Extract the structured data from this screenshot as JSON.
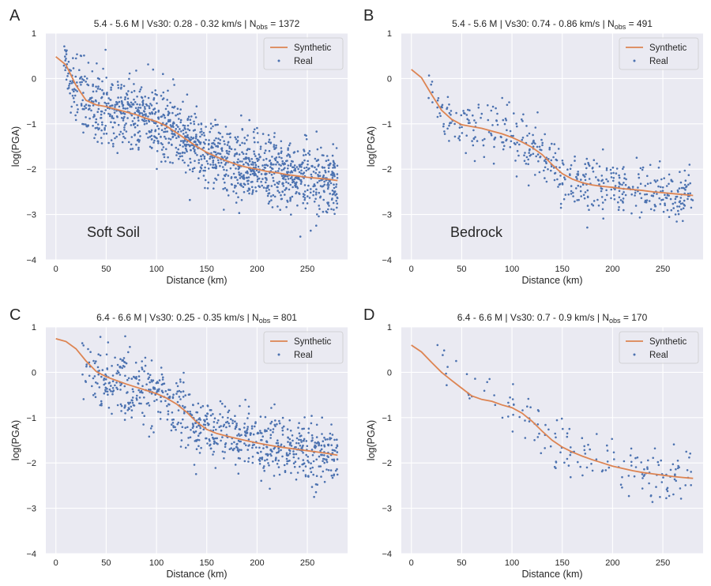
{
  "chart_data": [
    {
      "type": "scatter",
      "panel_label": "A",
      "title": "5.4 - 5.6 M | Vs30: 0.28 - 0.32 km/s | N",
      "title_sub": "obs",
      "title_tail": " = 1372",
      "n_obs": 1372,
      "xlabel": "Distance (km)",
      "ylabel": "log(PGA)",
      "xlim": [
        -10,
        290
      ],
      "ylim": [
        -4,
        1
      ],
      "xticks": [
        0,
        50,
        100,
        150,
        200,
        250
      ],
      "yticks": [
        -4,
        -3,
        -2,
        -1,
        0,
        1
      ],
      "annotation": "Soft Soil",
      "legend": [
        "Synthetic",
        "Real"
      ],
      "legend_position": "top-right",
      "synthetic": {
        "x": [
          0,
          10,
          20,
          30,
          40,
          50,
          60,
          70,
          80,
          90,
          100,
          110,
          120,
          130,
          140,
          150,
          160,
          170,
          180,
          190,
          200,
          210,
          220,
          230,
          240,
          250,
          260,
          270,
          280
        ],
        "y": [
          0.48,
          0.3,
          -0.15,
          -0.48,
          -0.58,
          -0.62,
          -0.68,
          -0.74,
          -0.8,
          -0.88,
          -0.95,
          -1.05,
          -1.2,
          -1.35,
          -1.5,
          -1.63,
          -1.73,
          -1.82,
          -1.9,
          -1.96,
          -2.0,
          -2.05,
          -2.08,
          -2.12,
          -2.15,
          -2.18,
          -2.2,
          -2.22,
          -2.25
        ]
      },
      "real_spread": 0.38,
      "real_xrange": [
        8,
        280
      ]
    },
    {
      "type": "scatter",
      "panel_label": "B",
      "title": "5.4 - 5.6 M | Vs30: 0.74 - 0.86 km/s | N",
      "title_sub": "obs",
      "title_tail": " = 491",
      "n_obs": 491,
      "xlabel": "Distance (km)",
      "ylabel": "log(PGA)",
      "xlim": [
        -10,
        290
      ],
      "ylim": [
        -4,
        1
      ],
      "xticks": [
        0,
        50,
        100,
        150,
        200,
        250
      ],
      "yticks": [
        -4,
        -3,
        -2,
        -1,
        0,
        1
      ],
      "annotation": "Bedrock",
      "legend": [
        "Synthetic",
        "Real"
      ],
      "legend_position": "top-right",
      "synthetic": {
        "x": [
          0,
          10,
          20,
          30,
          40,
          50,
          60,
          70,
          80,
          90,
          100,
          110,
          120,
          130,
          140,
          150,
          160,
          170,
          180,
          190,
          200,
          210,
          220,
          230,
          240,
          250,
          260,
          270,
          280
        ],
        "y": [
          0.2,
          0.02,
          -0.35,
          -0.7,
          -0.9,
          -1.02,
          -1.06,
          -1.1,
          -1.16,
          -1.22,
          -1.3,
          -1.4,
          -1.52,
          -1.68,
          -1.9,
          -2.1,
          -2.22,
          -2.3,
          -2.35,
          -2.38,
          -2.4,
          -2.43,
          -2.45,
          -2.47,
          -2.5,
          -2.52,
          -2.54,
          -2.56,
          -2.58
        ]
      },
      "real_spread": 0.32,
      "real_xrange": [
        15,
        280
      ]
    },
    {
      "type": "scatter",
      "panel_label": "C",
      "title": "6.4 - 6.6 M | Vs30: 0.25 - 0.35 km/s | N",
      "title_sub": "obs",
      "title_tail": " = 801",
      "n_obs": 801,
      "xlabel": "Distance (km)",
      "ylabel": "log(PGA)",
      "xlim": [
        -10,
        290
      ],
      "ylim": [
        -4,
        1
      ],
      "xticks": [
        0,
        50,
        100,
        150,
        200,
        250
      ],
      "yticks": [
        -4,
        -3,
        -2,
        -1,
        0,
        1
      ],
      "annotation": "",
      "legend": [
        "Synthetic",
        "Real"
      ],
      "legend_position": "top-right",
      "synthetic": {
        "x": [
          0,
          10,
          20,
          30,
          40,
          50,
          60,
          70,
          80,
          90,
          100,
          110,
          120,
          130,
          140,
          150,
          160,
          170,
          180,
          190,
          200,
          210,
          220,
          230,
          240,
          250,
          260,
          270,
          280
        ],
        "y": [
          0.74,
          0.68,
          0.52,
          0.25,
          0.02,
          -0.1,
          -0.18,
          -0.26,
          -0.33,
          -0.4,
          -0.47,
          -0.57,
          -0.7,
          -0.88,
          -1.1,
          -1.26,
          -1.35,
          -1.41,
          -1.46,
          -1.51,
          -1.56,
          -1.6,
          -1.64,
          -1.67,
          -1.7,
          -1.73,
          -1.76,
          -1.79,
          -1.83
        ]
      },
      "real_spread": 0.35,
      "real_xrange": [
        25,
        280
      ]
    },
    {
      "type": "scatter",
      "panel_label": "D",
      "title": "6.4 - 6.6 M | Vs30: 0.7 - 0.9 km/s | N",
      "title_sub": "obs",
      "title_tail": " = 170",
      "n_obs": 170,
      "xlabel": "Distance (km)",
      "ylabel": "log(PGA)",
      "xlim": [
        -10,
        290
      ],
      "ylim": [
        -4,
        1
      ],
      "xticks": [
        0,
        50,
        100,
        150,
        200,
        250
      ],
      "yticks": [
        -4,
        -3,
        -2,
        -1,
        0,
        1
      ],
      "annotation": "",
      "legend": [
        "Synthetic",
        "Real"
      ],
      "legend_position": "top-right",
      "synthetic": {
        "x": [
          0,
          10,
          20,
          30,
          40,
          50,
          60,
          70,
          80,
          90,
          100,
          110,
          120,
          130,
          140,
          150,
          160,
          170,
          180,
          190,
          200,
          210,
          220,
          230,
          240,
          250,
          260,
          270,
          280
        ],
        "y": [
          0.6,
          0.45,
          0.22,
          0.0,
          -0.18,
          -0.35,
          -0.52,
          -0.6,
          -0.64,
          -0.72,
          -0.78,
          -0.9,
          -1.08,
          -1.3,
          -1.5,
          -1.65,
          -1.76,
          -1.85,
          -1.93,
          -2.0,
          -2.07,
          -2.12,
          -2.17,
          -2.21,
          -2.24,
          -2.27,
          -2.3,
          -2.32,
          -2.34
        ]
      },
      "real_spread": 0.3,
      "real_xrange": [
        25,
        280
      ]
    }
  ],
  "colors": {
    "synthetic": "#dd8452",
    "real": "#4c72b0",
    "axes_bg": "#eaeaf2",
    "grid": "#ffffff",
    "text": "#262626"
  }
}
